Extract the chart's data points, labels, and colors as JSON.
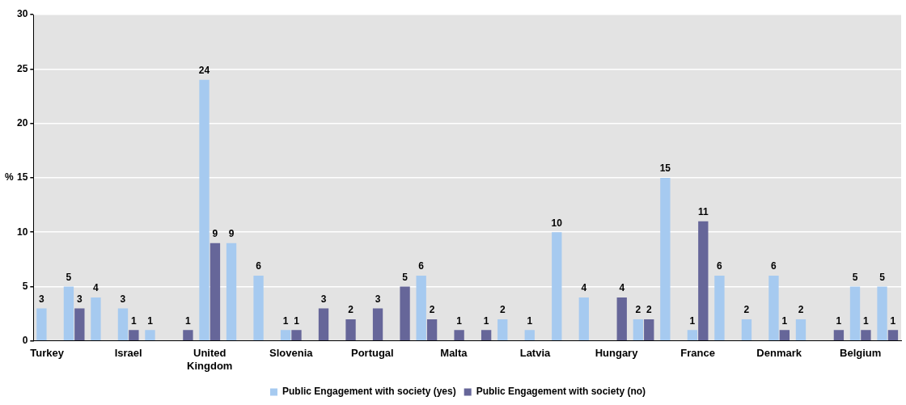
{
  "chart_data": {
    "type": "bar",
    "ylabel": "%",
    "categories": [
      "Turkey",
      null,
      null,
      "Israel",
      null,
      null,
      "United Kingdom",
      null,
      null,
      "Slovenia",
      null,
      null,
      "Portugal",
      null,
      null,
      "Malta",
      null,
      null,
      "Latvia",
      null,
      null,
      "Hungary",
      null,
      null,
      "France",
      null,
      null,
      "Denmark",
      null,
      null,
      "Belgium",
      null
    ],
    "series": [
      {
        "name": "Public Engagement with society (yes)",
        "color": "#a6caf0",
        "values": [
          3,
          5,
          4,
          3,
          1,
          null,
          24,
          9,
          6,
          1,
          null,
          null,
          null,
          null,
          6,
          null,
          null,
          2,
          1,
          10,
          4,
          null,
          2,
          15,
          1,
          6,
          2,
          6,
          2,
          null,
          5,
          5
        ]
      },
      {
        "name": "Public Engagement with society (no)",
        "color": "#666699",
        "values": [
          null,
          3,
          null,
          1,
          null,
          1,
          9,
          null,
          null,
          1,
          3,
          2,
          3,
          5,
          2,
          1,
          1,
          null,
          null,
          null,
          null,
          4,
          2,
          null,
          11,
          null,
          null,
          1,
          null,
          1,
          1,
          1
        ]
      }
    ],
    "ylim": [
      0,
      30
    ],
    "yticks": [
      0,
      5,
      10,
      15,
      20,
      25,
      30
    ],
    "grid": "y",
    "legend": "bottom",
    "data_labels": true
  }
}
